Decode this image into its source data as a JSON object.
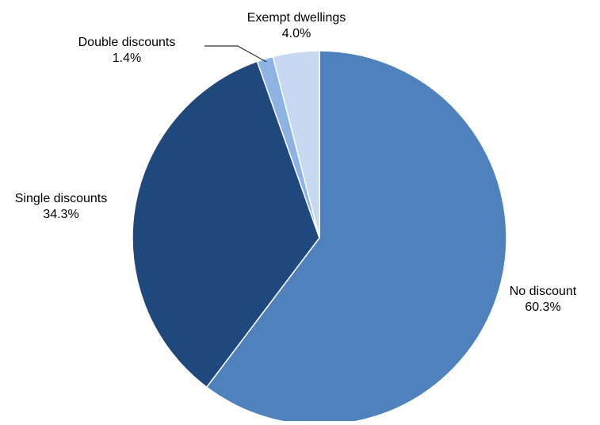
{
  "chart_data": {
    "type": "pie",
    "start": "top",
    "direction": "clockwise",
    "slices": [
      {
        "label": "No discount",
        "value": 60.3,
        "value_label": "60.3%",
        "color": "#4F81BD"
      },
      {
        "label": "Single discounts",
        "value": 34.3,
        "value_label": "34.3%",
        "color": "#1F497D"
      },
      {
        "label": "Double discounts",
        "value": 1.4,
        "value_label": "1.4%",
        "color": "#8DB3E2"
      },
      {
        "label": "Exempt dwellings",
        "value": 4.0,
        "value_label": "4.0%",
        "color": "#C6D9F1"
      }
    ]
  }
}
